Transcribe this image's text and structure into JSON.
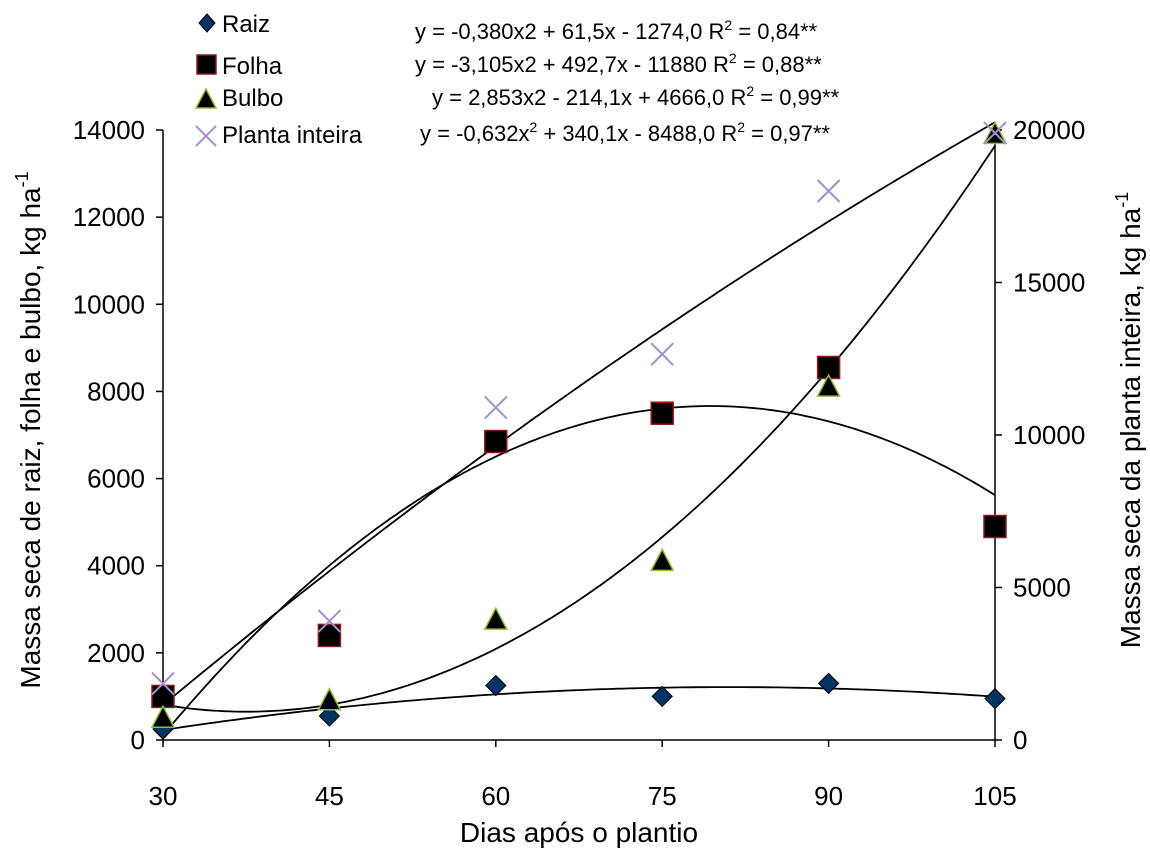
{
  "chart_data": {
    "type": "scatter",
    "title": "",
    "xlabel": "Dias após o plantio",
    "ylabel_left": {
      "text": "Massa seca de raiz, folha e bulbo, kg ha",
      "sup": "-1"
    },
    "ylabel_right": {
      "text": "Massa seca da planta inteira, kg ha",
      "sup": "-1"
    },
    "x": [
      30,
      45,
      60,
      75,
      90,
      105
    ],
    "x_ticks": [
      "30",
      "45",
      "60",
      "75",
      "90",
      "105"
    ],
    "xlim": [
      30,
      105
    ],
    "ylim_left": [
      0,
      14000
    ],
    "ylim_right": [
      0,
      20000
    ],
    "y_ticks_left": [
      "0",
      "2000",
      "4000",
      "6000",
      "8000",
      "10000",
      "12000",
      "14000"
    ],
    "y_ticks_right": [
      "0",
      "5000",
      "10000",
      "15000",
      "20000"
    ],
    "grid": false,
    "legend_position": "top",
    "series": [
      {
        "name": "Raiz",
        "axis": "left",
        "marker": "diamond",
        "color": "#003366",
        "values": [
          250,
          550,
          1250,
          1000,
          1300,
          950
        ],
        "equation": {
          "lead": "y = -0,380x2 + 61,5x - 1274,0 R",
          "sup": "2",
          "tail": " = 0,84**"
        },
        "fit": [
          -0.38,
          61.5,
          -1274.0
        ]
      },
      {
        "name": "Folha",
        "axis": "left",
        "marker": "square",
        "color": "#000000",
        "edge_color": "#8b1a1a",
        "values": [
          1000,
          2400,
          6850,
          7500,
          8550,
          4900
        ],
        "equation": {
          "lead": "y = -3,105x2 + 492,7x - 11880 R",
          "sup": "2",
          "tail": " = 0,88**"
        },
        "fit": [
          -3.105,
          492.7,
          -11880
        ]
      },
      {
        "name": "Bulbo",
        "axis": "left",
        "marker": "triangle",
        "color": "#000000",
        "edge_color": "#8fbc3a",
        "values": [
          500,
          900,
          2750,
          4100,
          8100,
          13900
        ],
        "equation": {
          "lead": "y = 2,853x2 - 214,1x + 4666,0 R",
          "sup": "2",
          "tail": " = 0,99**"
        },
        "fit": [
          2.853,
          -214.1,
          4666.0
        ]
      },
      {
        "name": "Planta inteira",
        "axis": "right",
        "marker": "x",
        "color": "#a58fd0",
        "values": [
          1850,
          3900,
          10900,
          12650,
          18000,
          19900
        ],
        "equation": {
          "lead": "y = -0,632x",
          "sup": "2",
          "tail": " + 340,1x - 8488,0  R",
          "sup2": "2",
          "tail2": " = 0,97**"
        },
        "fit": [
          -0.632,
          340.1,
          -8488.0
        ]
      }
    ]
  }
}
